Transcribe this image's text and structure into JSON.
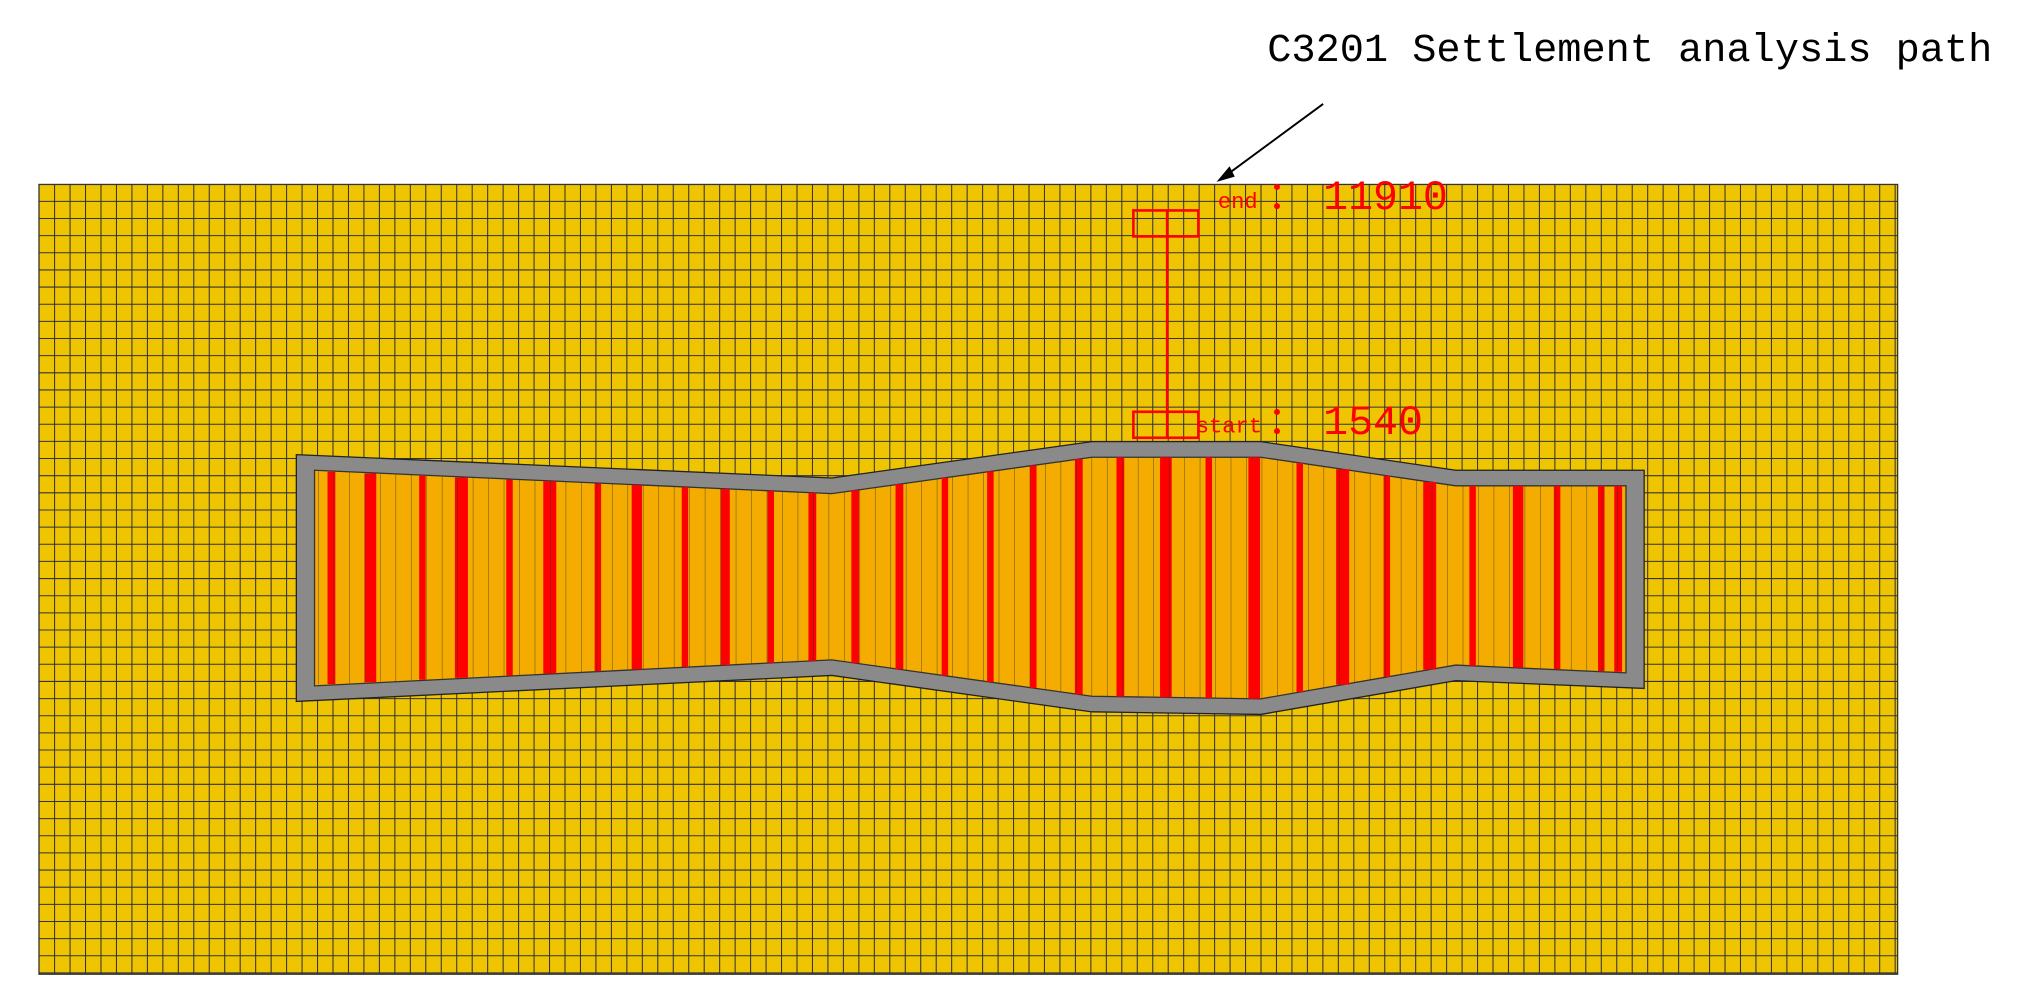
{
  "title": "C3201 Settlement analysis path",
  "path": {
    "separator": "：",
    "end": {
      "label": "end",
      "node": "11910"
    },
    "start": {
      "label": "start",
      "node": "1540"
    }
  }
}
